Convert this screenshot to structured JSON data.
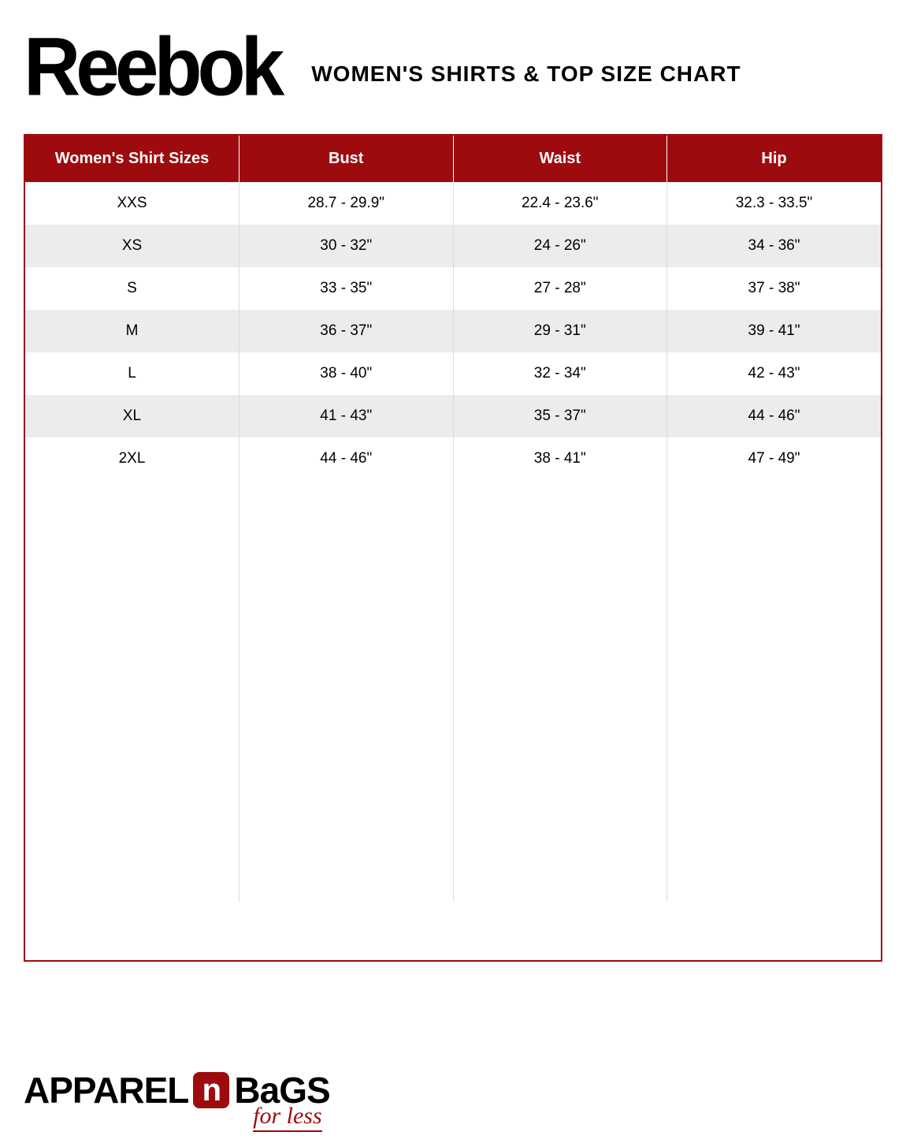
{
  "header": {
    "brand": "Reebok",
    "title": "WOMEN'S SHIRTS & TOP SIZE CHART"
  },
  "table": {
    "header_bg": "#9e0b0e",
    "header_fg": "#ffffff",
    "row_even_bg": "#ececec",
    "row_odd_bg": "#ffffff",
    "border_color": "#9e0b0e",
    "cell_border_color": "#dcdcdc",
    "font_size": 19,
    "header_font_size": 20,
    "columns": [
      "Women's Shirt Sizes",
      "Bust",
      "Waist",
      "Hip"
    ],
    "rows": [
      [
        "XXS",
        "28.7 - 29.9\"",
        "22.4 - 23.6\"",
        "32.3 - 33.5\""
      ],
      [
        "XS",
        "30 - 32\"",
        "24 - 26\"",
        "34 - 36\""
      ],
      [
        "S",
        "33 - 35\"",
        "27 - 28\"",
        "37 - 38\""
      ],
      [
        "M",
        "36 - 37\"",
        "29 - 31\"",
        "39 - 41\""
      ],
      [
        "L",
        "38 - 40\"",
        "32 - 34\"",
        "42 - 43\""
      ],
      [
        "XL",
        "41 - 43\"",
        "35 - 37\"",
        "44 - 46\""
      ],
      [
        "2XL",
        "44 - 46\"",
        "38 - 41\"",
        "47 - 49\""
      ]
    ]
  },
  "footer": {
    "logo_left": "APPAREL",
    "logo_mid": "n",
    "logo_right": "BaGS",
    "tagline": "for less",
    "accent_color": "#9e0b0e"
  }
}
